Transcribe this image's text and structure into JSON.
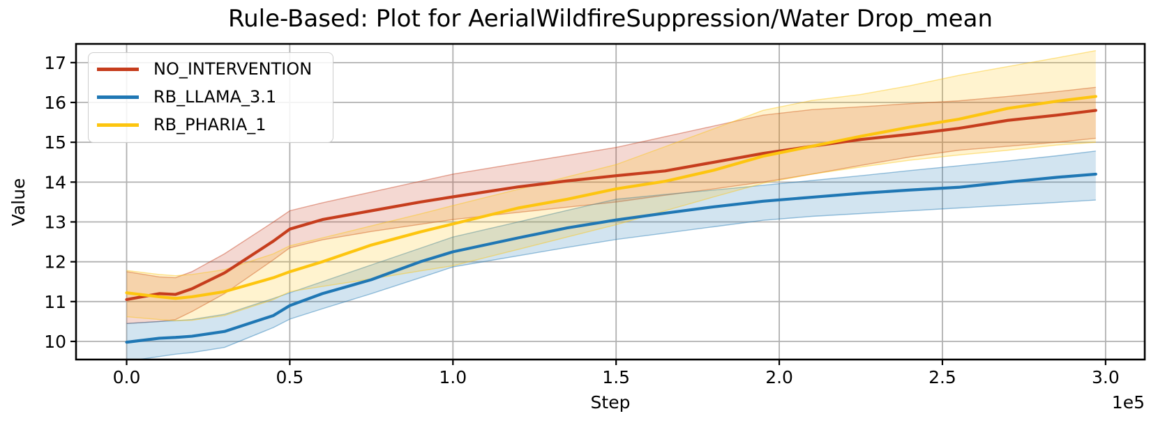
{
  "title": "Rule-Based: Plot for AerialWildfireSuppression/Water Drop_mean",
  "chart_data": {
    "type": "line",
    "title": "Rule-Based: Plot for AerialWildfireSuppression/Water Drop_mean",
    "xlabel": "Step",
    "ylabel": "Value",
    "x_offset_label": "1e5",
    "grid": true,
    "legend_position": "upper left",
    "xlim": [
      -15500,
      312000
    ],
    "ylim": [
      9.545,
      17.47
    ],
    "xtick_values": [
      0,
      50000,
      100000,
      150000,
      200000,
      250000,
      300000
    ],
    "xtick_labels": [
      "0.0",
      "0.5",
      "1.0",
      "1.5",
      "2.0",
      "2.5",
      "3.0"
    ],
    "ytick_values": [
      10,
      11,
      12,
      13,
      14,
      15,
      16,
      17
    ],
    "ytick_labels": [
      "10",
      "11",
      "12",
      "13",
      "14",
      "15",
      "16",
      "17"
    ],
    "style": {
      "grid_color": "#b0b0b0",
      "spine_color": "#000000",
      "text_color": "#000000",
      "band_alpha": 0.2
    },
    "x": [
      0,
      10000,
      15000,
      20000,
      30000,
      45000,
      50000,
      60000,
      75000,
      90000,
      100000,
      120000,
      135000,
      150000,
      165000,
      180000,
      195000,
      210000,
      225000,
      240000,
      255000,
      270000,
      285000,
      297000
    ],
    "series": [
      {
        "name": "NO_INTERVENTION",
        "color": "#c63d1d",
        "values": [
          11.05,
          11.2,
          11.18,
          11.32,
          11.72,
          12.52,
          12.82,
          13.06,
          13.28,
          13.5,
          13.63,
          13.88,
          14.03,
          14.16,
          14.28,
          14.5,
          14.72,
          14.9,
          15.07,
          15.2,
          15.35,
          15.55,
          15.68,
          15.8
        ],
        "band_lower": [
          10.45,
          10.5,
          10.55,
          10.75,
          11.2,
          12.05,
          12.35,
          12.55,
          12.76,
          12.94,
          13.06,
          13.24,
          13.37,
          13.5,
          13.67,
          13.83,
          14.0,
          14.2,
          14.42,
          14.63,
          14.8,
          14.9,
          15.0,
          15.1
        ],
        "band_upper": [
          11.75,
          11.62,
          11.6,
          11.75,
          12.2,
          13.0,
          13.28,
          13.48,
          13.75,
          14.02,
          14.2,
          14.47,
          14.67,
          14.87,
          15.14,
          15.41,
          15.68,
          15.82,
          15.89,
          15.97,
          16.04,
          16.15,
          16.27,
          16.38
        ]
      },
      {
        "name": "RB_LLAMA_3.1",
        "color": "#1f77b4",
        "values": [
          9.98,
          10.08,
          10.1,
          10.13,
          10.25,
          10.65,
          10.9,
          11.2,
          11.55,
          12.0,
          12.25,
          12.6,
          12.85,
          13.05,
          13.22,
          13.38,
          13.52,
          13.62,
          13.72,
          13.8,
          13.87,
          14.0,
          14.12,
          14.2
        ],
        "band_lower": [
          9.5,
          9.62,
          9.68,
          9.72,
          9.85,
          10.35,
          10.56,
          10.82,
          11.2,
          11.6,
          11.87,
          12.15,
          12.36,
          12.56,
          12.72,
          12.88,
          13.04,
          13.14,
          13.21,
          13.28,
          13.35,
          13.42,
          13.49,
          13.55
        ],
        "band_upper": [
          10.45,
          10.5,
          10.52,
          10.55,
          10.68,
          11.08,
          11.22,
          11.5,
          11.92,
          12.34,
          12.62,
          13.0,
          13.29,
          13.57,
          13.69,
          13.8,
          13.92,
          14.04,
          14.16,
          14.29,
          14.41,
          14.53,
          14.66,
          14.78
        ]
      },
      {
        "name": "RB_PHARIA_1",
        "color": "#fdc50f",
        "values": [
          11.22,
          11.12,
          11.08,
          11.12,
          11.25,
          11.6,
          11.75,
          12.0,
          12.42,
          12.75,
          12.95,
          13.35,
          13.57,
          13.83,
          14.02,
          14.3,
          14.65,
          14.9,
          15.15,
          15.38,
          15.58,
          15.85,
          16.03,
          16.15
        ],
        "band_lower": [
          10.62,
          10.55,
          10.52,
          10.53,
          10.65,
          11.05,
          11.25,
          11.38,
          11.57,
          11.77,
          11.9,
          12.31,
          12.62,
          12.93,
          13.28,
          13.63,
          13.97,
          14.2,
          14.38,
          14.55,
          14.68,
          14.8,
          14.93,
          15.0
        ],
        "band_upper": [
          11.78,
          11.68,
          11.65,
          11.68,
          11.8,
          12.2,
          12.4,
          12.6,
          12.9,
          13.2,
          13.41,
          13.82,
          14.13,
          14.44,
          14.89,
          15.34,
          15.8,
          16.05,
          16.2,
          16.42,
          16.68,
          16.9,
          17.12,
          17.3
        ]
      }
    ]
  }
}
